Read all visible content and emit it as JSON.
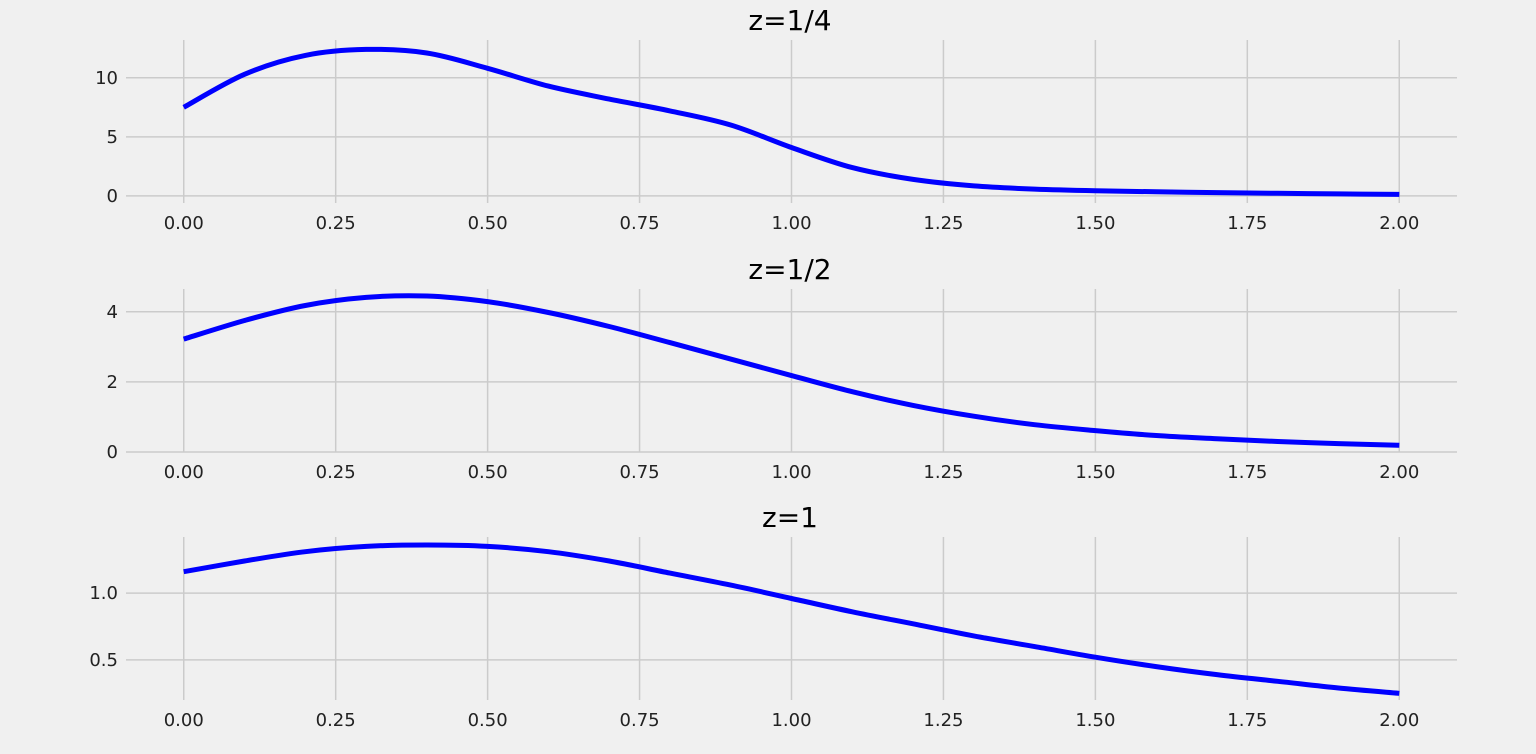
{
  "figure": {
    "background": "#f0f0f0",
    "grid_color": "#cbcbcb",
    "line_color": "#0000ff"
  },
  "chart_data": [
    {
      "type": "line",
      "title": "z=1/4",
      "xlabel": "",
      "ylabel": "",
      "grid": true,
      "xlim": [
        -0.095,
        2.095
      ],
      "ylim": [
        -0.6,
        13.2
      ],
      "xticks": [
        0,
        0.25,
        0.5,
        0.75,
        1.0,
        1.25,
        1.5,
        1.75,
        2.0
      ],
      "xtick_labels": [
        "0.00",
        "0.25",
        "0.50",
        "0.75",
        "1.00",
        "1.25",
        "1.50",
        "1.75",
        "2.00"
      ],
      "yticks": [
        0,
        5,
        10
      ],
      "ytick_labels": [
        "0",
        "5",
        "10"
      ],
      "series": [
        {
          "x": [
            0,
            0.1,
            0.2,
            0.3,
            0.4,
            0.5,
            0.6,
            0.7,
            0.8,
            0.9,
            1.0,
            1.1,
            1.2,
            1.3,
            1.4,
            1.5,
            1.6,
            1.7,
            1.8,
            1.9,
            2.0
          ],
          "y": [
            7.5,
            10.3,
            11.9,
            12.4,
            12.1,
            10.8,
            9.3,
            8.2,
            7.2,
            6.0,
            4.1,
            2.4,
            1.4,
            0.85,
            0.58,
            0.44,
            0.35,
            0.28,
            0.22,
            0.17,
            0.13
          ]
        }
      ]
    },
    {
      "type": "line",
      "title": "z=1/2",
      "xlabel": "",
      "ylabel": "",
      "grid": true,
      "xlim": [
        -0.095,
        2.095
      ],
      "ylim": [
        0,
        4.65
      ],
      "xticks": [
        0,
        0.25,
        0.5,
        0.75,
        1.0,
        1.25,
        1.5,
        1.75,
        2.0
      ],
      "xtick_labels": [
        "0.00",
        "0.25",
        "0.50",
        "0.75",
        "1.00",
        "1.25",
        "1.50",
        "1.75",
        "2.00"
      ],
      "yticks": [
        0,
        2,
        4
      ],
      "ytick_labels": [
        "0",
        "2",
        "4"
      ],
      "series": [
        {
          "x": [
            0,
            0.1,
            0.2,
            0.3,
            0.4,
            0.5,
            0.6,
            0.7,
            0.8,
            0.9,
            1.0,
            1.1,
            1.2,
            1.3,
            1.4,
            1.5,
            1.6,
            1.7,
            1.8,
            1.9,
            2.0
          ],
          "y": [
            3.22,
            3.75,
            4.18,
            4.41,
            4.45,
            4.29,
            3.98,
            3.58,
            3.12,
            2.65,
            2.18,
            1.72,
            1.33,
            1.02,
            0.78,
            0.61,
            0.47,
            0.38,
            0.3,
            0.24,
            0.19
          ]
        }
      ]
    },
    {
      "type": "line",
      "title": "z=1",
      "xlabel": "",
      "ylabel": "",
      "grid": true,
      "xlim": [
        -0.095,
        2.095
      ],
      "ylim": [
        0.2,
        1.42
      ],
      "xticks": [
        0,
        0.25,
        0.5,
        0.75,
        1.0,
        1.25,
        1.5,
        1.75,
        2.0
      ],
      "xtick_labels": [
        "0.00",
        "0.25",
        "0.50",
        "0.75",
        "1.00",
        "1.25",
        "1.50",
        "1.75",
        "2.00"
      ],
      "yticks": [
        0.5,
        1.0
      ],
      "ytick_labels": [
        "0.5",
        "1.0"
      ],
      "series": [
        {
          "x": [
            0,
            0.1,
            0.2,
            0.3,
            0.4,
            0.5,
            0.6,
            0.7,
            0.8,
            0.9,
            1.0,
            1.1,
            1.2,
            1.3,
            1.4,
            1.5,
            1.6,
            1.7,
            1.8,
            1.9,
            2.0
          ],
          "y": [
            1.16,
            1.24,
            1.31,
            1.35,
            1.36,
            1.35,
            1.31,
            1.24,
            1.15,
            1.06,
            0.96,
            0.86,
            0.77,
            0.68,
            0.6,
            0.52,
            0.45,
            0.39,
            0.34,
            0.29,
            0.25
          ]
        }
      ]
    }
  ]
}
